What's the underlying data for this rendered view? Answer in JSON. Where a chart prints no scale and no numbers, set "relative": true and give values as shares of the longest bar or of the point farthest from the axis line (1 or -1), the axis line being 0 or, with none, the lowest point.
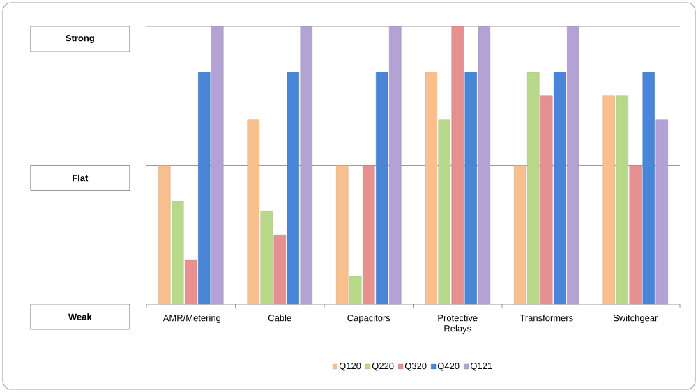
{
  "chart_data": {
    "type": "bar",
    "categories": [
      "AMR/Metering",
      "Cable",
      "Capacitors",
      "Protective Relays",
      "Transformers",
      "Switchgear"
    ],
    "series": [
      {
        "name": "Q120",
        "color": "#f9c08f",
        "values": [
          0.5,
          0.665,
          0.5,
          0.835,
          0.5,
          0.75
        ]
      },
      {
        "name": "Q220",
        "color": "#b9d98a",
        "values": [
          0.37,
          0.335,
          0.1,
          0.665,
          0.835,
          0.75
        ]
      },
      {
        "name": "Q320",
        "color": "#e6918f",
        "values": [
          0.16,
          0.25,
          0.5,
          1.0,
          0.75,
          0.5
        ]
      },
      {
        "name": "Q420",
        "color": "#4a86d8",
        "values": [
          0.835,
          0.835,
          0.835,
          0.835,
          0.835,
          0.835
        ]
      },
      {
        "name": "Q121",
        "color": "#b3a2d3",
        "values": [
          1.0,
          1.0,
          1.0,
          1.0,
          1.0,
          0.665
        ]
      }
    ],
    "relative": true,
    "ref_lines": [
      {
        "axis": "y",
        "value": 0.5,
        "color": "#808080"
      },
      {
        "axis": "y",
        "value": 1,
        "color": "#808080"
      }
    ],
    "annotations": [
      "Weak",
      "Flat",
      "Strong"
    ],
    "legend": "bottom"
  }
}
